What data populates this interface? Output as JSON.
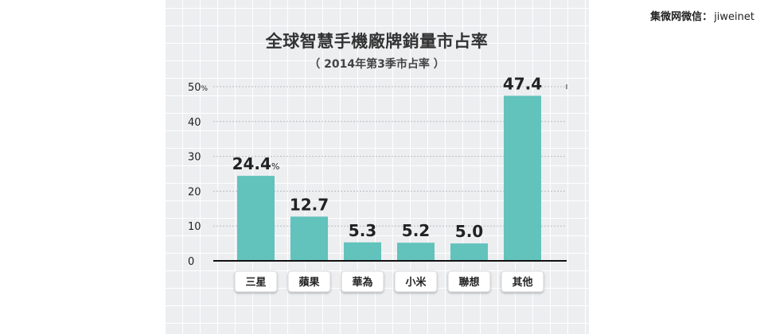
{
  "watermark": {
    "label": "集微网微信：",
    "handle": "jiweinet"
  },
  "chart_data": {
    "type": "bar",
    "title": "全球智慧手機廠牌銷量市占率",
    "subtitle": "（ 2014年第3季市占率 ）",
    "categories": [
      "三星",
      "蘋果",
      "華為",
      "小米",
      "聯想",
      "其他"
    ],
    "values": [
      24.4,
      12.7,
      5.3,
      5.2,
      5.0,
      47.4
    ],
    "value_labels": [
      "24.4",
      "12.7",
      "5.3",
      "5.2",
      "5.0",
      "47.4"
    ],
    "value_unit_on_first": "%",
    "ylim": [
      0,
      50
    ],
    "yticks": [
      0,
      10,
      20,
      30,
      40,
      50
    ],
    "ytick_unit_on_top": "%",
    "grid": true,
    "colors": {
      "bar": "#62c2bc",
      "background": "#eceef0",
      "axis": "#111111"
    }
  }
}
